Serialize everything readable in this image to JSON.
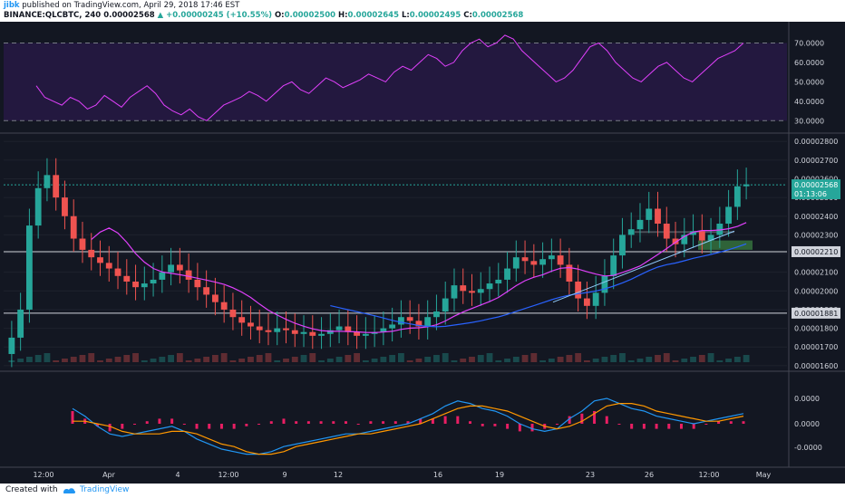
{
  "header": {
    "author": "jibk",
    "published_text": "published on TradingView.com, April 29, 2018 17:46 EST",
    "symbol": "BINANCE:QLCBTC, 240",
    "last": "0.00002568",
    "change": "+0.00000245 (+10.55%)",
    "o_label": "O:",
    "o_value": "0.00002500",
    "h_label": "H:",
    "h_value": "0.00002645",
    "l_label": "L:",
    "l_value": "0.00002495",
    "c_label": "C:",
    "c_value": "0.00002568"
  },
  "footer": {
    "created_with": "Created with",
    "brand": "TradingView"
  },
  "colors": {
    "bg": "#131722",
    "up": "#26a69a",
    "down": "#ef5350",
    "rsi": "#9c27b0",
    "rsi_band": "#2a1a4a",
    "ma_fast": "#e040fb",
    "ma_slow": "#2962ff",
    "macd": "#2196f3",
    "signal": "#ff9800",
    "hist": "#e91e63"
  },
  "chart_data": [
    {
      "type": "line",
      "name": "RSI",
      "yticks": [
        "70.0000",
        "60.0000",
        "50.0000",
        "40.0000",
        "30.0000"
      ],
      "ylim": [
        25,
        80
      ],
      "bands": [
        30,
        70
      ],
      "values": [
        48,
        42,
        40,
        38,
        42,
        40,
        36,
        38,
        43,
        40,
        37,
        42,
        45,
        48,
        44,
        38,
        35,
        33,
        36,
        32,
        30,
        34,
        38,
        40,
        42,
        45,
        43,
        40,
        44,
        48,
        50,
        46,
        44,
        48,
        52,
        50,
        47,
        49,
        51,
        54,
        52,
        50,
        55,
        58,
        56,
        60,
        64,
        62,
        58,
        60,
        66,
        70,
        72,
        68,
        70,
        74,
        72,
        66,
        62,
        58,
        54,
        50,
        52,
        56,
        62,
        68,
        70,
        66,
        60,
        56,
        52,
        50,
        54,
        58,
        60,
        56,
        52,
        50,
        54,
        58,
        62,
        64,
        66,
        70
      ]
    },
    {
      "type": "candlestick",
      "name": "QLCBTC",
      "yticks": [
        "0.00002800",
        "0.00002700",
        "0.00002600",
        "0.00002500",
        "0.00002400",
        "0.00002300",
        "0.00002200",
        "0.00002100",
        "0.00002000",
        "0.00001900",
        "0.00001800",
        "0.00001700",
        "0.00001600"
      ],
      "ylim": [
        1.58e-05,
        2.83e-05
      ],
      "price_labels": [
        {
          "text": "0.00002568",
          "value": 2.568e-05
        },
        {
          "text": "01:13:06",
          "value": 2.52e-05
        },
        {
          "text": "0.00002210",
          "value": 2.21e-05
        },
        {
          "text": "0.00001881",
          "value": 1.881e-05
        }
      ],
      "levels": [
        2.21e-05,
        1.881e-05,
        2.568e-05
      ],
      "close": [
        1.75e-05,
        1.9e-05,
        2.35e-05,
        2.55e-05,
        2.62e-05,
        2.5e-05,
        2.4e-05,
        2.28e-05,
        2.22e-05,
        2.18e-05,
        2.15e-05,
        2.12e-05,
        2.08e-05,
        2.05e-05,
        2.02e-05,
        2.04e-05,
        2.06e-05,
        2.1e-05,
        2.14e-05,
        2.11e-05,
        2.06e-05,
        2.02e-05,
        1.98e-05,
        1.94e-05,
        1.9e-05,
        1.86e-05,
        1.83e-05,
        1.81e-05,
        1.79e-05,
        1.78e-05,
        1.8e-05,
        1.79e-05,
        1.77e-05,
        1.78e-05,
        1.76e-05,
        1.77e-05,
        1.79e-05,
        1.81e-05,
        1.78e-05,
        1.76e-05,
        1.77e-05,
        1.78e-05,
        1.8e-05,
        1.82e-05,
        1.86e-05,
        1.84e-05,
        1.81e-05,
        1.86e-05,
        1.89e-05,
        1.96e-05,
        2.03e-05,
        2e-05,
        1.99e-05,
        2.01e-05,
        2.04e-05,
        2.06e-05,
        2.12e-05,
        2.18e-05,
        2.16e-05,
        2.14e-05,
        2.17e-05,
        2.19e-05,
        2.14e-05,
        2.05e-05,
        1.96e-05,
        1.92e-05,
        1.99e-05,
        2.08e-05,
        2.19e-05,
        2.3e-05,
        2.33e-05,
        2.38e-05,
        2.44e-05,
        2.36e-05,
        2.28e-05,
        2.25e-05,
        2.3e-05,
        2.32e-05,
        2.27e-05,
        2.3e-05,
        2.36e-05,
        2.45e-05,
        2.56e-05,
        2.57e-05
      ]
    },
    {
      "type": "bar",
      "name": "MACD",
      "yticks": [
        "0.0000",
        "0.0000",
        "-0.0000"
      ],
      "macd": [
        0.6,
        0.3,
        -0.1,
        -0.4,
        -0.5,
        -0.4,
        -0.3,
        -0.2,
        -0.1,
        -0.3,
        -0.6,
        -0.8,
        -1.0,
        -1.1,
        -1.2,
        -1.2,
        -1.1,
        -0.9,
        -0.8,
        -0.7,
        -0.6,
        -0.5,
        -0.4,
        -0.4,
        -0.3,
        -0.2,
        -0.1,
        0.0,
        0.2,
        0.4,
        0.7,
        0.9,
        0.8,
        0.6,
        0.5,
        0.3,
        0.0,
        -0.2,
        -0.3,
        -0.2,
        0.2,
        0.5,
        0.9,
        1.0,
        0.8,
        0.6,
        0.5,
        0.3,
        0.2,
        0.1,
        0.0,
        0.1,
        0.2,
        0.3,
        0.4
      ],
      "signal": [
        0.1,
        0.1,
        0.0,
        -0.1,
        -0.3,
        -0.4,
        -0.4,
        -0.4,
        -0.3,
        -0.3,
        -0.4,
        -0.6,
        -0.8,
        -0.9,
        -1.1,
        -1.2,
        -1.2,
        -1.1,
        -0.9,
        -0.8,
        -0.7,
        -0.6,
        -0.5,
        -0.4,
        -0.4,
        -0.3,
        -0.2,
        -0.1,
        0.0,
        0.2,
        0.4,
        0.6,
        0.7,
        0.7,
        0.6,
        0.5,
        0.3,
        0.1,
        -0.1,
        -0.2,
        -0.1,
        0.1,
        0.4,
        0.7,
        0.8,
        0.8,
        0.7,
        0.5,
        0.4,
        0.3,
        0.2,
        0.1,
        0.1,
        0.2,
        0.3
      ],
      "histogram": [
        0.5,
        0.2,
        -0.1,
        -0.3,
        -0.2,
        0.0,
        0.1,
        0.2,
        0.2,
        0.0,
        -0.2,
        -0.2,
        -0.2,
        -0.2,
        -0.1,
        0.0,
        0.1,
        0.2,
        0.1,
        0.1,
        0.1,
        0.1,
        0.1,
        0.0,
        0.1,
        0.1,
        0.1,
        0.1,
        0.2,
        0.2,
        0.3,
        0.3,
        0.1,
        -0.1,
        -0.1,
        -0.2,
        -0.3,
        -0.3,
        -0.2,
        0.0,
        0.3,
        0.4,
        0.5,
        0.3,
        0.0,
        -0.2,
        -0.2,
        -0.2,
        -0.2,
        -0.2,
        -0.2,
        0.0,
        0.1,
        0.1,
        0.1
      ]
    }
  ],
  "time_axis": [
    "12:00",
    "Apr",
    "4",
    "12:00",
    "9",
    "12",
    "16",
    "19",
    "23",
    "26",
    "12:00",
    "May"
  ]
}
